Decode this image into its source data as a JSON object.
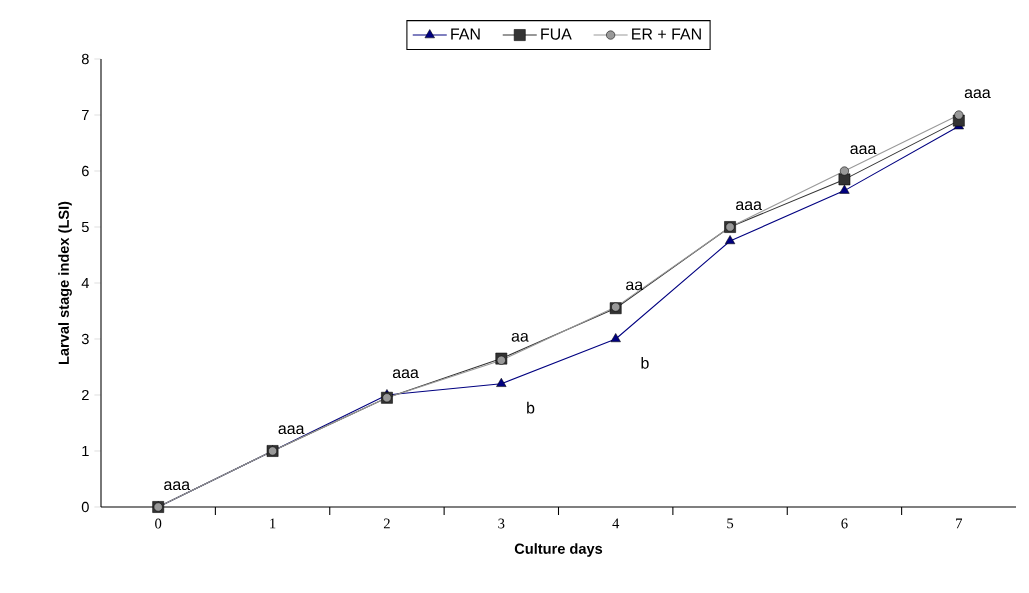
{
  "chart_data": {
    "type": "line",
    "xlabel": "Culture days",
    "ylabel": "Larval stage  index (LSI)",
    "categories": [
      "0",
      "1",
      "2",
      "3",
      "4",
      "5",
      "6",
      "7"
    ],
    "series": [
      {
        "name": "FAN",
        "color": "#000080",
        "marker": "triangle",
        "values": [
          0,
          1,
          2,
          2.2,
          3.0,
          4.75,
          5.65,
          6.8
        ]
      },
      {
        "name": "FUA",
        "color": "#333333",
        "marker": "square",
        "values": [
          0,
          1,
          1.95,
          2.65,
          3.55,
          5.0,
          5.85,
          6.9
        ]
      },
      {
        "name": "ER + FAN",
        "color": "#999999",
        "marker": "circle",
        "values": [
          0,
          1,
          1.95,
          2.62,
          3.57,
          5.0,
          6.0,
          7.0
        ]
      }
    ],
    "ylim": [
      0,
      8
    ],
    "yticks": [
      0,
      1,
      2,
      3,
      4,
      5,
      6,
      7,
      8
    ],
    "grid": false,
    "legend": "top",
    "line_style": "solid",
    "annotations": [
      {
        "text": "aaa",
        "x": "0",
        "y": 0
      },
      {
        "text": "aaa",
        "x": "1",
        "y": 1
      },
      {
        "text": "aaa",
        "x": "2",
        "y": 2
      },
      {
        "text": "aa",
        "x": "3",
        "y": 2.65
      },
      {
        "text": "b",
        "x": "3",
        "y": 2.2
      },
      {
        "text": "aa",
        "x": "4",
        "y": 3.57
      },
      {
        "text": "b",
        "x": "4",
        "y": 3.0
      },
      {
        "text": "aaa",
        "x": "5",
        "y": 5.0
      },
      {
        "text": "aaa",
        "x": "6",
        "y": 6.0
      },
      {
        "text": "aaa",
        "x": "7",
        "y": 7.0
      }
    ]
  }
}
